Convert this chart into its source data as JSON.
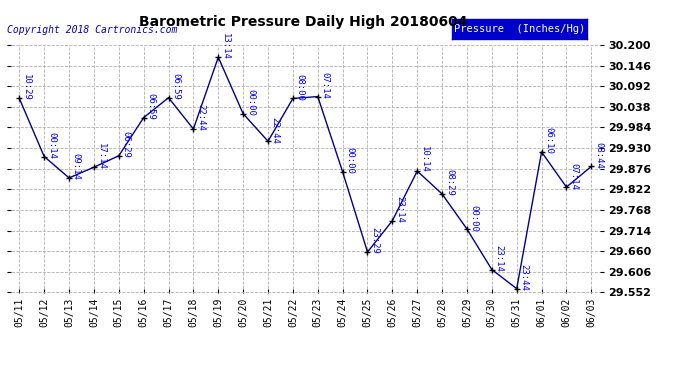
{
  "title": "Barometric Pressure Daily High 20180604",
  "copyright": "Copyright 2018 Cartronics.com",
  "legend_label": "Pressure  (Inches/Hg)",
  "dates": [
    "05/11",
    "05/12",
    "05/13",
    "05/14",
    "05/15",
    "05/16",
    "05/17",
    "05/18",
    "05/19",
    "05/20",
    "05/21",
    "05/22",
    "05/23",
    "05/24",
    "05/25",
    "05/26",
    "05/27",
    "05/28",
    "05/29",
    "05/30",
    "05/31",
    "06/01",
    "06/02",
    "06/03"
  ],
  "values": [
    30.06,
    29.908,
    29.852,
    29.88,
    29.91,
    30.01,
    30.062,
    29.98,
    30.168,
    30.02,
    29.948,
    30.06,
    30.065,
    29.868,
    29.658,
    29.74,
    29.87,
    29.81,
    29.718,
    29.612,
    29.562,
    29.92,
    29.828,
    29.882
  ],
  "annotations": [
    "10:29",
    "00:14",
    "09:14",
    "17:14",
    "06:29",
    "06:59",
    "06:59",
    "22:44",
    "13:14",
    "00:00",
    "22:44",
    "08:00",
    "07:14",
    "00:00",
    "23:29",
    "23:14",
    "10:14",
    "08:29",
    "00:00",
    "23:14",
    "23:44",
    "06:10",
    "07:14",
    "08:44"
  ],
  "ylim_min": 29.552,
  "ylim_max": 30.2,
  "yticks": [
    29.552,
    29.606,
    29.66,
    29.714,
    29.768,
    29.822,
    29.876,
    29.93,
    29.984,
    30.038,
    30.092,
    30.146,
    30.2
  ],
  "line_color": "#00008B",
  "marker_color": "#000000",
  "bg_color": "#ffffff",
  "plot_bg_color": "#ffffff",
  "grid_color": "#b0b0b0",
  "title_color": "#000000",
  "annotation_color": "#0000FF",
  "copyright_color": "#0000CD",
  "legend_bg": "#0000CC",
  "legend_fg": "#ffffff"
}
